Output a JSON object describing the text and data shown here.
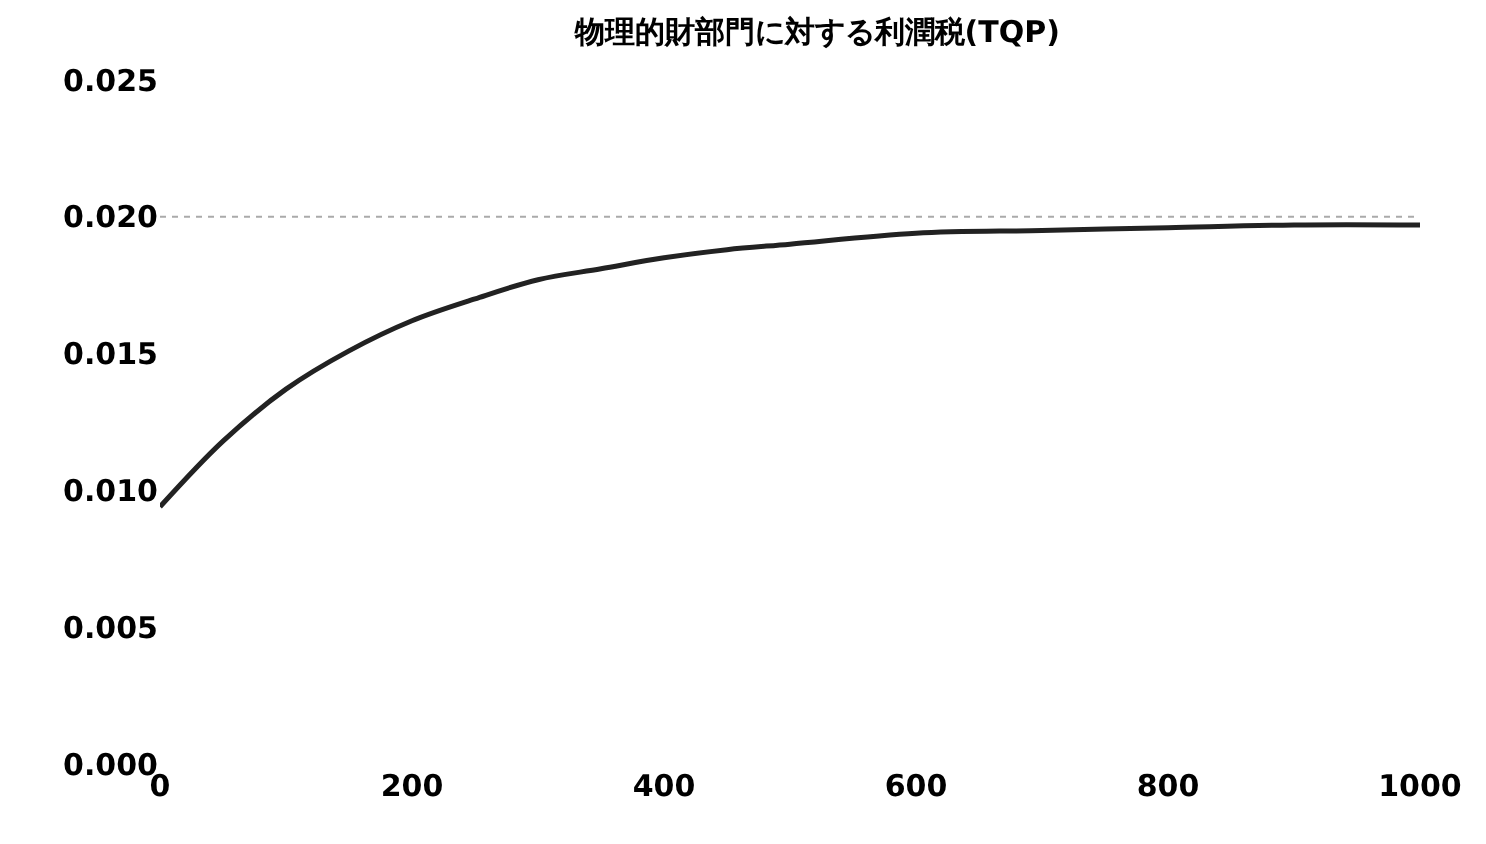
{
  "chart_data": {
    "type": "line",
    "title": "物理的財部門に対する利潤税(TQP)",
    "x": [
      0,
      50,
      100,
      150,
      200,
      250,
      300,
      350,
      400,
      450,
      500,
      600,
      700,
      800,
      900,
      1000
    ],
    "series": [
      {
        "color": "#222222",
        "values": [
          0.0094,
          0.0118,
          0.0137,
          0.0151,
          0.0162,
          0.017,
          0.0177,
          0.0181,
          0.0185,
          0.0188,
          0.019,
          0.0194,
          0.0195,
          0.0196,
          0.0197,
          0.0197
        ]
      }
    ],
    "xlim": [
      0,
      1000
    ],
    "xticks": [
      0,
      200,
      400,
      600,
      800,
      1000
    ],
    "ylim": [
      0,
      0.025
    ],
    "yticks": [
      {
        "value": 0,
        "label": "0.000"
      },
      {
        "value": 0.005,
        "label": "0.005"
      },
      {
        "value": 0.01,
        "label": "0.010"
      },
      {
        "value": 0.015,
        "label": "0.015"
      },
      {
        "value": 0.02,
        "label": "0.020"
      },
      {
        "value": 0.025,
        "label": "0.025"
      }
    ],
    "ref_lines": [
      {
        "axis": "y",
        "value": 0.02,
        "label": null,
        "color": "#aaaaaa",
        "line_style": "dotted"
      }
    ],
    "legend": false,
    "marker": "none",
    "line_style": "solid"
  }
}
